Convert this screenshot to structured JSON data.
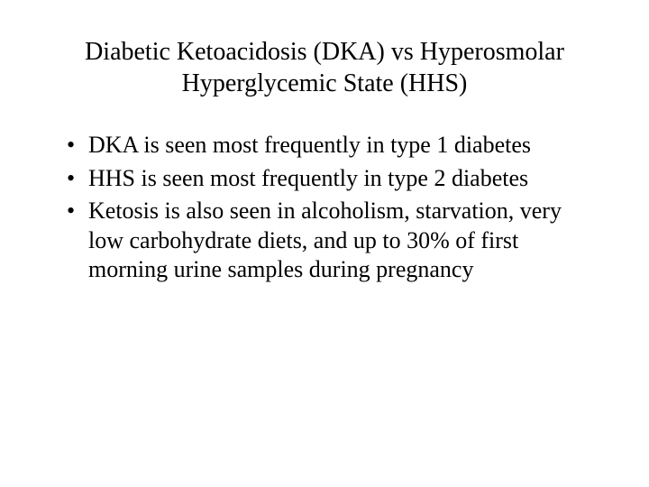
{
  "slide": {
    "title": "Diabetic Ketoacidosis (DKA) vs Hyperosmolar Hyperglycemic State (HHS)",
    "bullets": [
      "DKA is seen most frequently in type 1 diabetes",
      "HHS is seen most frequently in type 2 diabetes",
      "Ketosis is also seen in alcoholism, starvation, very low carbohydrate diets, and up to 30% of first morning urine samples during pregnancy"
    ],
    "styling": {
      "background_color": "#ffffff",
      "text_color": "#000000",
      "font_family": "Times New Roman",
      "title_fontsize": 28,
      "body_fontsize": 26,
      "title_align": "center",
      "bullet_char": "•"
    }
  }
}
